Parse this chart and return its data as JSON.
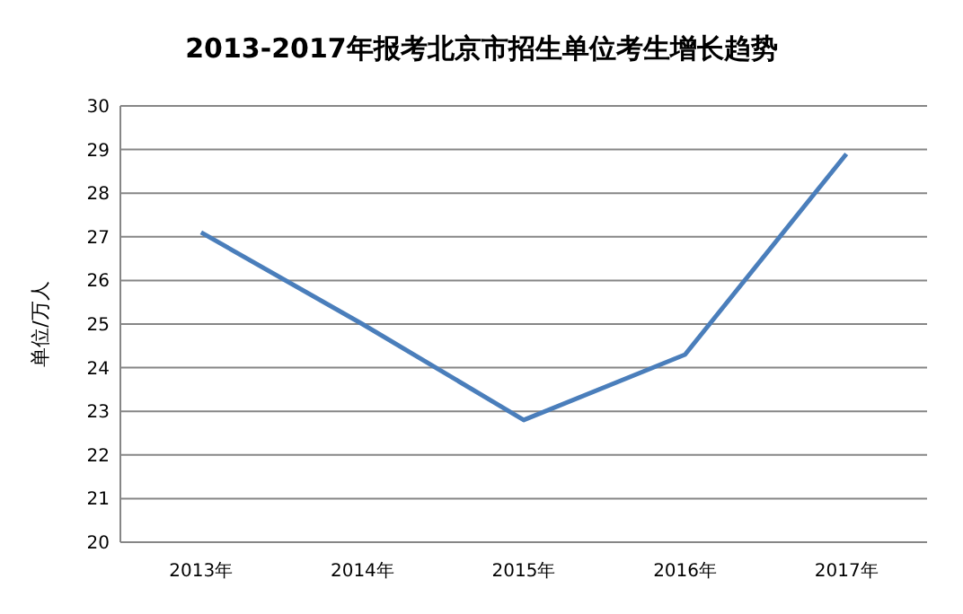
{
  "chart_data": {
    "type": "line",
    "title": "2013-2017年报考北京市招生单位考生增长趋势",
    "ylabel": "单位/万人",
    "categories": [
      "2013年",
      "2014年",
      "2015年",
      "2016年",
      "2017年"
    ],
    "series": [
      {
        "color": "#4a7ebb",
        "values": [
          27.1,
          25.0,
          22.8,
          24.3,
          28.9
        ]
      }
    ],
    "ylim": [
      20,
      30
    ],
    "yticks": [
      20,
      21,
      22,
      23,
      24,
      25,
      26,
      27,
      28,
      29,
      30
    ],
    "grid": "y",
    "marker": "none",
    "line_style": "solid"
  }
}
